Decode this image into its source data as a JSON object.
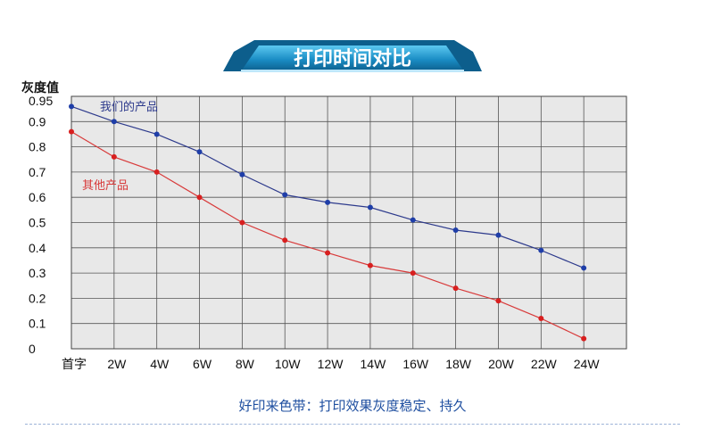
{
  "chart_data": {
    "type": "line",
    "title": "打印时间对比",
    "ylabel": "灰度值",
    "xlabel": "",
    "categories": [
      "首字",
      "2W",
      "4W",
      "6W",
      "8W",
      "10W",
      "12W",
      "14W",
      "16W",
      "18W",
      "20W",
      "22W",
      "24W"
    ],
    "ylim": [
      0,
      0.95
    ],
    "yticks": [
      "0.95",
      "0.9",
      "0.8",
      "0.7",
      "0.6",
      "0.5",
      "0.4",
      "0.3",
      "0.2",
      "0.1",
      "0"
    ],
    "grid": true,
    "series": [
      {
        "name": "我们的产品",
        "color": "#2d3a8c",
        "marker_color": "#1f3ea8",
        "values": [
          0.96,
          0.9,
          0.85,
          0.78,
          0.69,
          0.61,
          0.58,
          0.56,
          0.51,
          0.47,
          0.45,
          0.39,
          0.32
        ]
      },
      {
        "name": "其他产品",
        "color": "#d83a3a",
        "marker_color": "#d81f1f",
        "values": [
          0.86,
          0.76,
          0.7,
          0.6,
          0.5,
          0.43,
          0.38,
          0.33,
          0.3,
          0.24,
          0.19,
          0.12,
          0.04
        ]
      }
    ]
  },
  "caption": "好印来色带：打印效果灰度稳定、持久",
  "colors": {
    "banner_dark": "#0d5e8c",
    "banner_light": "#3fb6e6",
    "grid_line": "#555555",
    "plot_bg": "#e8e8e8"
  }
}
